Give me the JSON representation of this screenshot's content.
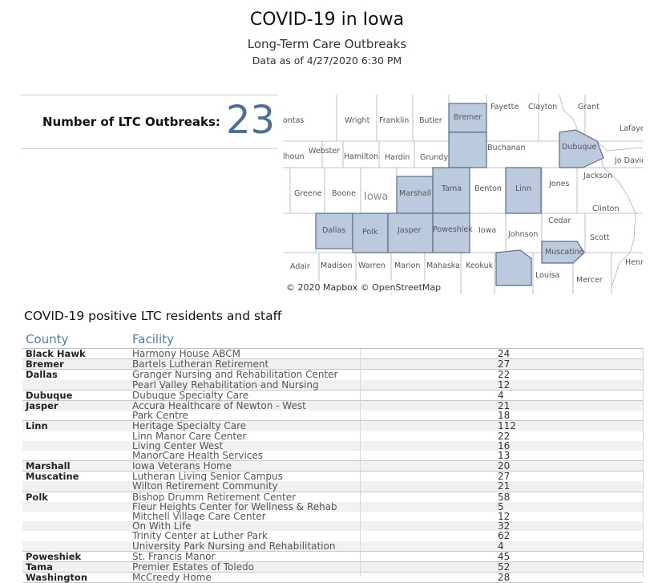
{
  "header": {
    "title": "COVID-19 in Iowa",
    "subtitle": "Long-Term Care Outbreaks",
    "as_of": "Data as of 4/27/2020 6:30 PM"
  },
  "kpi": {
    "label": "Number of LTC Outbreaks:",
    "value": "23",
    "value_color": "#4f6f96"
  },
  "map": {
    "credit": "© 2020 Mapbox  © OpenStreetMap",
    "state_label": "Iowa",
    "highlight_fill": "#bccadd",
    "county_labels": [
      "ontas",
      "Wright",
      "Franklin",
      "Butler",
      "Bremer",
      "Fayette",
      "Clayton",
      "Grant",
      "Lafaye",
      "lhoun",
      "Webster",
      "Hamilton",
      "Hardin",
      "Grundy",
      "Buchanan",
      "Dubuque",
      "Jo Davie",
      "Greene",
      "Boone",
      "Marshall",
      "Tama",
      "Benton",
      "Linn",
      "Jones",
      "Jackson",
      "Clinton",
      "Dallas",
      "Polk",
      "Jasper",
      "Poweshiek",
      "Iowa",
      "Johnson",
      "Cedar",
      "Scott",
      "Muscatine",
      "Henr",
      "Adair",
      "Madison",
      "Warren",
      "Marion",
      "Mahaska",
      "Keokuk",
      "Louisa",
      "Mercer"
    ],
    "highlighted_counties": [
      "Bremer",
      "Black Hawk",
      "Dubuque",
      "Marshall",
      "Tama",
      "Linn",
      "Dallas",
      "Polk",
      "Jasper",
      "Poweshiek",
      "Muscatine",
      "Washington"
    ]
  },
  "table": {
    "title": "COVID-19 positive LTC residents and staff",
    "col_county": "County",
    "col_facility": "Facility",
    "groups": [
      {
        "county": "Black Hawk",
        "rows": [
          {
            "facility": "Harmony House ABCM",
            "value": "24"
          }
        ]
      },
      {
        "county": "Bremer",
        "rows": [
          {
            "facility": "Bartels Lutheran Retirement",
            "value": "27"
          }
        ]
      },
      {
        "county": "Dallas",
        "rows": [
          {
            "facility": "Granger Nursing and Rehabilitation Center",
            "value": "22"
          },
          {
            "facility": "Pearl Valley Rehabilitation and Nursing",
            "value": "12"
          }
        ]
      },
      {
        "county": "Dubuque",
        "rows": [
          {
            "facility": "Dubuque Specialty Care",
            "value": "4"
          }
        ]
      },
      {
        "county": "Jasper",
        "rows": [
          {
            "facility": "Accura Healthcare of Newton - West",
            "value": "21"
          },
          {
            "facility": "Park Centre",
            "value": "18"
          }
        ]
      },
      {
        "county": "Linn",
        "rows": [
          {
            "facility": "Heritage Specialty Care",
            "value": "112"
          },
          {
            "facility": "Linn Manor Care Center",
            "value": "22"
          },
          {
            "facility": "Living Center West",
            "value": "16"
          },
          {
            "facility": "ManorCare Health Services",
            "value": "13"
          }
        ]
      },
      {
        "county": "Marshall",
        "rows": [
          {
            "facility": "Iowa Veterans Home",
            "value": "20"
          }
        ]
      },
      {
        "county": "Muscatine",
        "rows": [
          {
            "facility": "Lutheran Living Senior Campus",
            "value": "27"
          },
          {
            "facility": "Wilton Retirement Community",
            "value": "21"
          }
        ]
      },
      {
        "county": "Polk",
        "rows": [
          {
            "facility": "Bishop Drumm Retirement Center",
            "value": "58"
          },
          {
            "facility": "Fleur Heights Center for Wellness & Rehab",
            "value": "5"
          },
          {
            "facility": "Mitchell Village Care Center",
            "value": "12"
          },
          {
            "facility": "On With Life",
            "value": "32"
          },
          {
            "facility": "Trinity Center at Luther Park",
            "value": "62"
          },
          {
            "facility": "University Park Nursing and Rehabilitation",
            "value": "4"
          }
        ]
      },
      {
        "county": "Poweshiek",
        "rows": [
          {
            "facility": "St. Francis Manor",
            "value": "45"
          }
        ]
      },
      {
        "county": "Tama",
        "rows": [
          {
            "facility": "Premier Estates of Toledo",
            "value": "52"
          }
        ]
      },
      {
        "county": "Washington",
        "rows": [
          {
            "facility": "McCreedy Home",
            "value": "28"
          }
        ]
      }
    ]
  }
}
